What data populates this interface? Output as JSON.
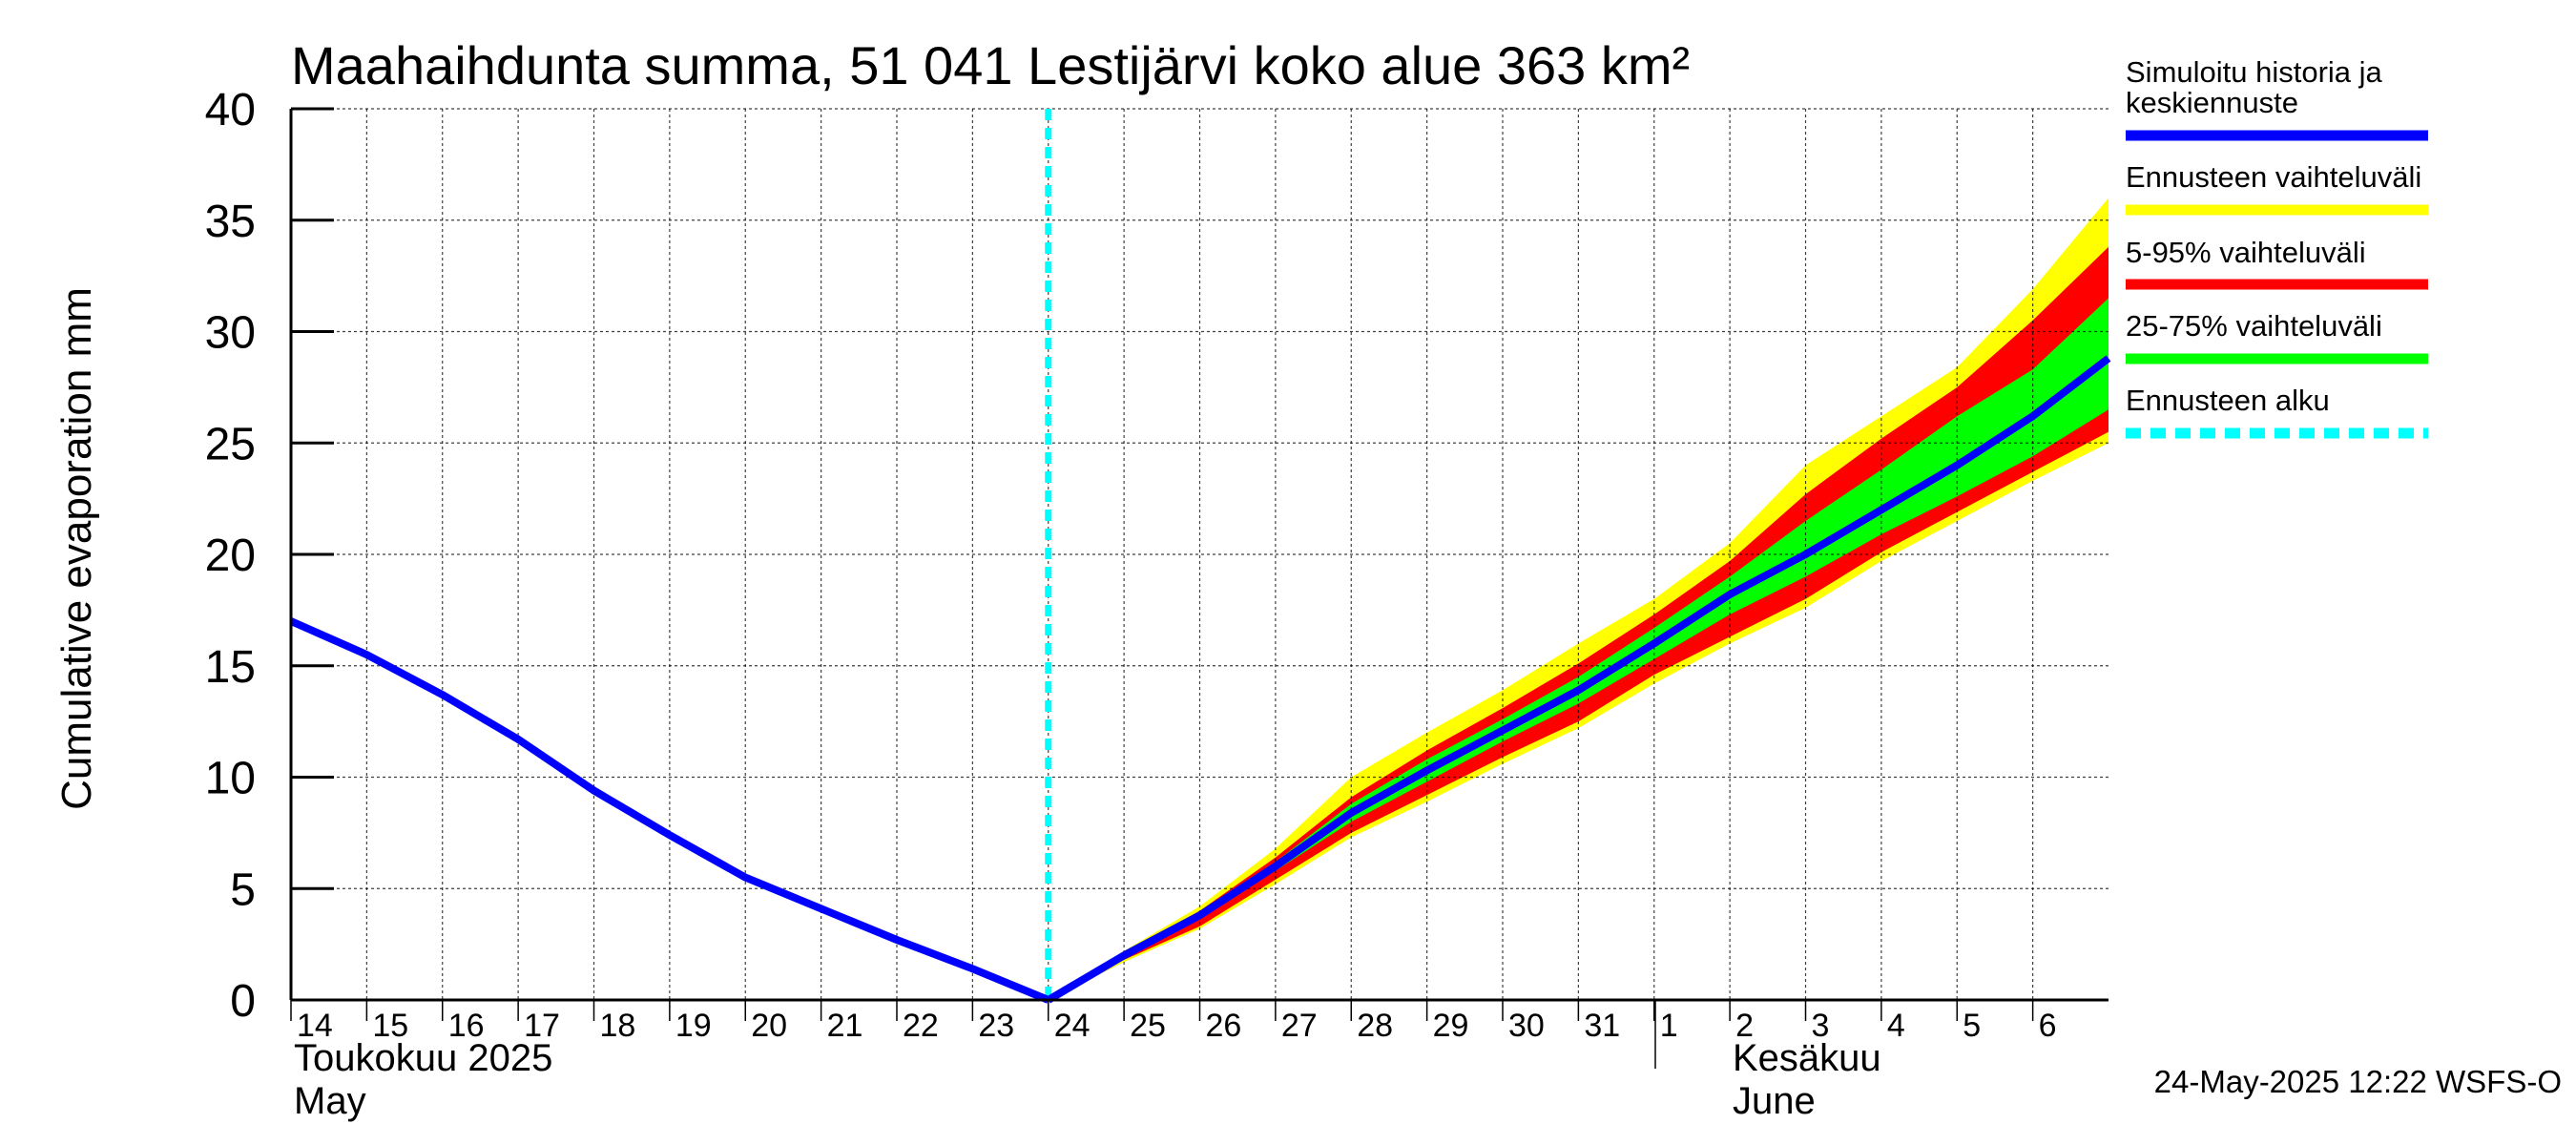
{
  "chart_data": {
    "type": "area",
    "title": "Maahaihdunta summa, 51 041 Lestijärvi koko alue 363 km²",
    "ylabel": "Cumulative evaporation   mm",
    "xlabel": "",
    "ylim": [
      0,
      40
    ],
    "yticks": [
      "0",
      "5",
      "10",
      "15",
      "20",
      "25",
      "30",
      "35",
      "40"
    ],
    "grid": true,
    "x_range": [
      "2025-05-14",
      "2025-06-07"
    ],
    "day_ticks": [
      "14",
      "15",
      "16",
      "17",
      "18",
      "19",
      "20",
      "21",
      "22",
      "23",
      "24",
      "25",
      "26",
      "27",
      "28",
      "29",
      "30",
      "31",
      "1",
      "2",
      "3",
      "4",
      "5",
      "6"
    ],
    "month_labels": [
      {
        "line1": "Toukokuu  2025",
        "line2": "May"
      },
      {
        "line1": "Kesäkuu",
        "line2": "June"
      }
    ],
    "forecast_start": "2025-05-24",
    "history": {
      "x": [
        "2025-05-14",
        "2025-05-15",
        "2025-05-16",
        "2025-05-17",
        "2025-05-18",
        "2025-05-19",
        "2025-05-20",
        "2025-05-21",
        "2025-05-22",
        "2025-05-23",
        "2025-05-24"
      ],
      "y": [
        17.0,
        15.5,
        13.7,
        11.7,
        9.4,
        7.4,
        5.5,
        4.1,
        2.7,
        1.4,
        0.0
      ]
    },
    "forecast": {
      "x": [
        "2025-05-24",
        "2025-05-25",
        "2025-05-26",
        "2025-05-27",
        "2025-05-28",
        "2025-05-29",
        "2025-05-30",
        "2025-05-31",
        "2025-06-01",
        "2025-06-02",
        "2025-06-03",
        "2025-06-04",
        "2025-06-05",
        "2025-06-06",
        "2025-06-07"
      ],
      "median": [
        0.0,
        2.0,
        3.8,
        6.0,
        8.4,
        10.3,
        12.1,
        13.9,
        16.0,
        18.2,
        20.0,
        22.0,
        24.0,
        26.2,
        28.8
      ],
      "p25": [
        0.0,
        2.0,
        3.7,
        5.8,
        8.0,
        9.8,
        11.6,
        13.3,
        15.3,
        17.3,
        19.0,
        20.9,
        22.6,
        24.4,
        26.5
      ],
      "p75": [
        0.0,
        2.1,
        3.9,
        6.2,
        8.8,
        10.8,
        12.6,
        14.5,
        16.7,
        19.0,
        21.5,
        23.8,
        26.2,
        28.3,
        31.5
      ],
      "p5": [
        0.0,
        1.8,
        3.3,
        5.4,
        7.5,
        9.2,
        10.9,
        12.5,
        14.6,
        16.3,
        18.0,
        20.1,
        21.9,
        23.7,
        25.5
      ],
      "p95": [
        0.0,
        2.1,
        4.0,
        6.4,
        9.1,
        11.2,
        13.1,
        15.1,
        17.3,
        19.7,
        22.7,
        25.2,
        27.5,
        30.5,
        33.8
      ],
      "min": [
        0.0,
        1.7,
        3.2,
        5.2,
        7.3,
        8.9,
        10.6,
        12.2,
        14.2,
        16.0,
        17.6,
        19.7,
        21.5,
        23.3,
        25.0
      ],
      "max": [
        0.0,
        2.2,
        4.2,
        6.8,
        10.0,
        12.0,
        13.9,
        16.0,
        18.0,
        20.5,
        24.0,
        26.2,
        28.4,
        31.9,
        36.0
      ]
    },
    "legend": [
      {
        "label": "Simuloitu historia ja\nkeskiennuste",
        "color": "#0000ff",
        "style": "solid"
      },
      {
        "label": "Ennusteen vaihteluväli",
        "color": "#ffff00",
        "style": "solid"
      },
      {
        "label": "5-95% vaihteluväli",
        "color": "#ff0000",
        "style": "solid"
      },
      {
        "label": "25-75% vaihteluväli",
        "color": "#00ff00",
        "style": "solid"
      },
      {
        "label": "Ennusteen alku",
        "color": "#00ffff",
        "style": "dashed"
      }
    ],
    "legend_placement": "right",
    "colors": {
      "median": "#0000ff",
      "range": "#ffff00",
      "p5_95": "#ff0000",
      "p25_75": "#00ff00",
      "forecast_start": "#00ffff",
      "grid": "#000000"
    },
    "timestamp": "24-May-2025 12:22 WSFS-O"
  }
}
